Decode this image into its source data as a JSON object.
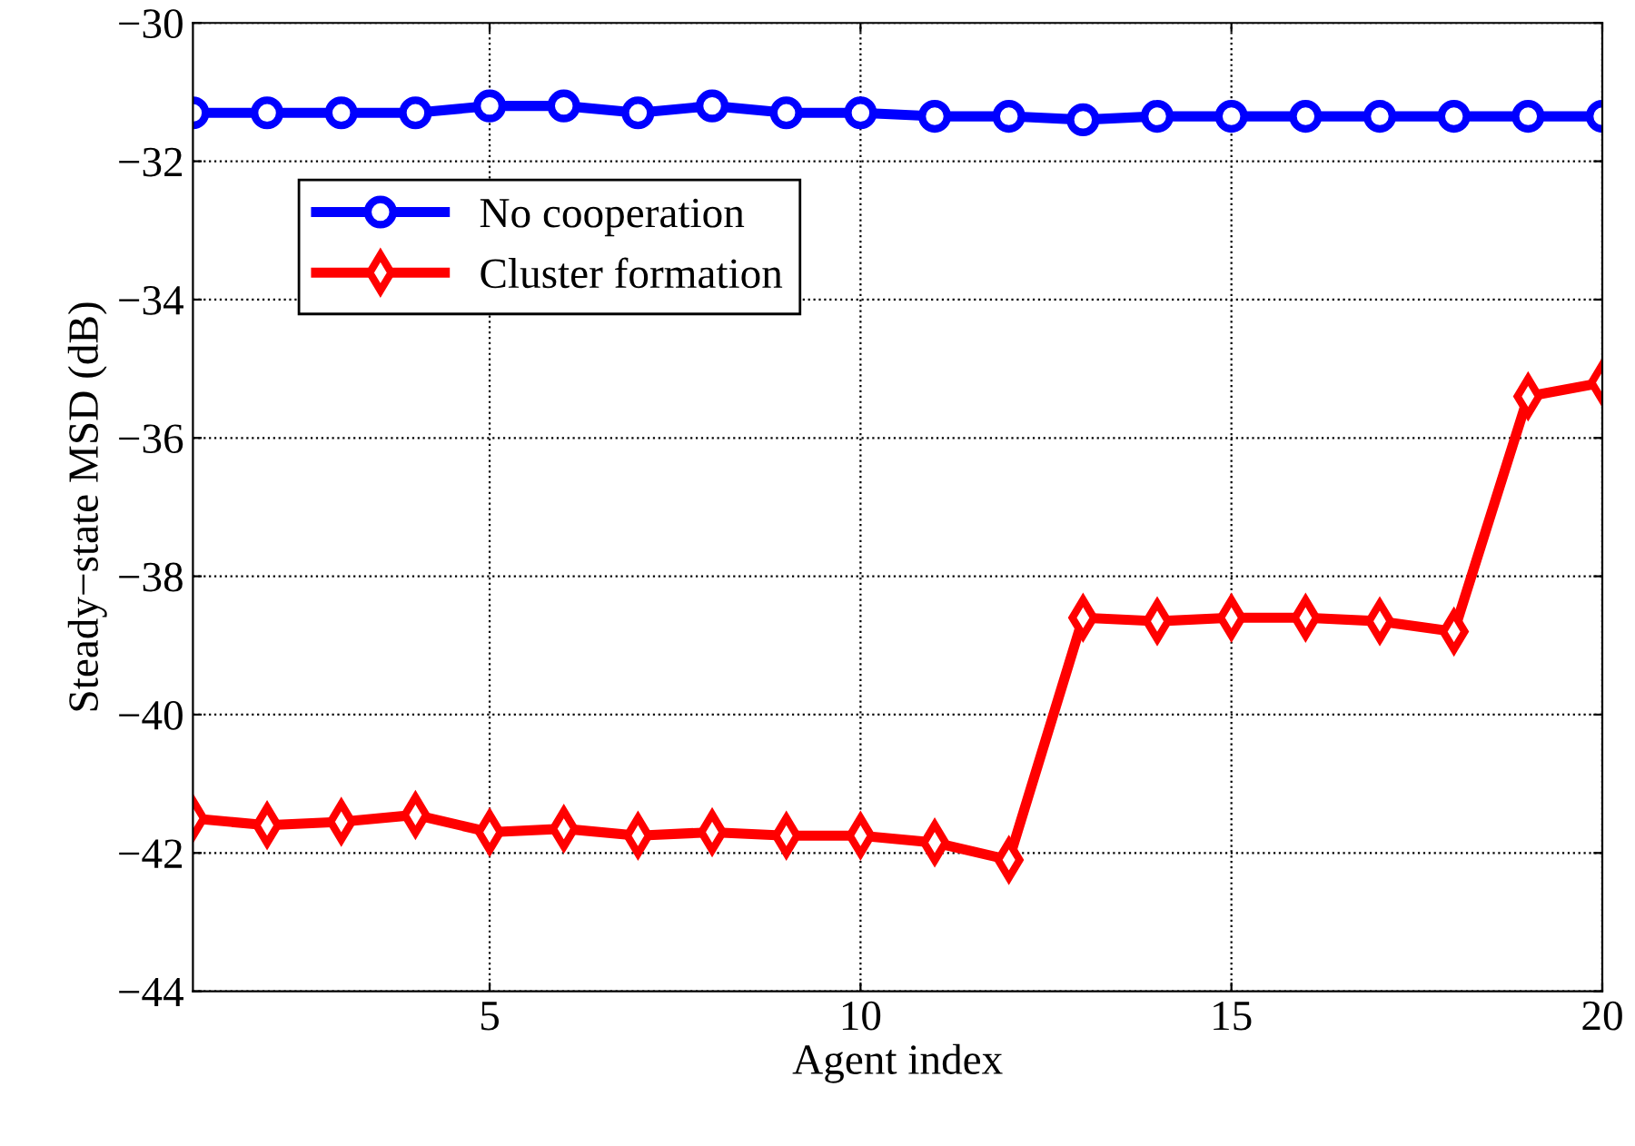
{
  "chart_data": {
    "type": "line",
    "xlabel": "Agent index",
    "ylabel": "Steady−state MSD (dB)",
    "x": [
      1,
      2,
      3,
      4,
      5,
      6,
      7,
      8,
      9,
      10,
      11,
      12,
      13,
      14,
      15,
      16,
      17,
      18,
      19,
      20
    ],
    "series": [
      {
        "name": "No cooperation",
        "color": "#0000ff",
        "marker": "circle",
        "values": [
          -31.3,
          -31.3,
          -31.3,
          -31.3,
          -31.2,
          -31.2,
          -31.3,
          -31.2,
          -31.3,
          -31.3,
          -31.35,
          -31.35,
          -31.4,
          -31.35,
          -31.35,
          -31.35,
          -31.35,
          -31.35,
          -31.35,
          -31.35
        ]
      },
      {
        "name": "Cluster formation",
        "color": "#ff0000",
        "marker": "diamond",
        "values": [
          -41.5,
          -41.6,
          -41.55,
          -41.45,
          -41.7,
          -41.65,
          -41.75,
          -41.7,
          -41.75,
          -41.75,
          -41.85,
          -42.1,
          -38.6,
          -38.65,
          -38.6,
          -38.6,
          -38.65,
          -38.8,
          -35.4,
          -35.2
        ]
      }
    ],
    "xlim": [
      1,
      20
    ],
    "xticks": [
      5,
      10,
      15,
      20
    ],
    "ylim": [
      -44,
      -30
    ],
    "yticks": [
      -44,
      -42,
      -40,
      -38,
      -36,
      -34,
      -32,
      -30
    ],
    "grid": true,
    "legend": "top left",
    "line_style": "solid"
  }
}
